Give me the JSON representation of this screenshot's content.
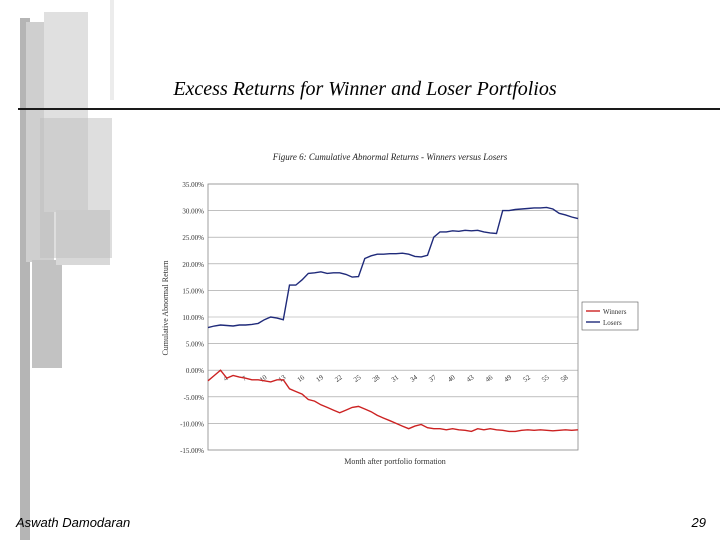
{
  "slide": {
    "title": "Excess Returns for Winner and Loser Portfolios",
    "author": "Aswath Damodaran",
    "page_number": "29"
  },
  "chart_data": {
    "type": "line",
    "title": "Figure 6: Cumulative Abnormal Returns - Winners versus Losers",
    "xlabel": "Month after portfolio formation",
    "ylabel": "Cumulative Abnormal Return",
    "ylim": [
      -15,
      35
    ],
    "yticks": [
      "35.00%",
      "30.00%",
      "25.00%",
      "20.00%",
      "15.00%",
      "10.00%",
      "5.00%",
      "0.00%",
      "-5.00%",
      "-10.00%",
      "-15.00%"
    ],
    "xticks": [
      "4",
      "7",
      "10",
      "13",
      "16",
      "19",
      "22",
      "25",
      "28",
      "31",
      "34",
      "37",
      "40",
      "43",
      "46",
      "49",
      "52",
      "55",
      "58"
    ],
    "xlim": [
      1,
      60
    ],
    "grid": true,
    "legend_position": "right",
    "series": [
      {
        "name": "Winners",
        "color": "#cc2222",
        "points": [
          [
            1,
            -2.0
          ],
          [
            2,
            -1.0
          ],
          [
            3,
            0.0
          ],
          [
            4,
            -1.5
          ],
          [
            5,
            -1.0
          ],
          [
            6,
            -1.3
          ],
          [
            7,
            -1.5
          ],
          [
            8,
            -1.8
          ],
          [
            9,
            -1.8
          ],
          [
            10,
            -2.0
          ],
          [
            11,
            -2.2
          ],
          [
            12,
            -1.8
          ],
          [
            13,
            -1.8
          ],
          [
            14,
            -3.5
          ],
          [
            15,
            -4.0
          ],
          [
            16,
            -4.5
          ],
          [
            17,
            -5.5
          ],
          [
            18,
            -5.8
          ],
          [
            19,
            -6.5
          ],
          [
            20,
            -7.0
          ],
          [
            21,
            -7.5
          ],
          [
            22,
            -8.0
          ],
          [
            23,
            -7.5
          ],
          [
            24,
            -7.0
          ],
          [
            25,
            -6.8
          ],
          [
            26,
            -7.3
          ],
          [
            27,
            -7.8
          ],
          [
            28,
            -8.5
          ],
          [
            29,
            -9.0
          ],
          [
            30,
            -9.5
          ],
          [
            31,
            -10.0
          ],
          [
            32,
            -10.5
          ],
          [
            33,
            -11.0
          ],
          [
            34,
            -10.5
          ],
          [
            35,
            -10.2
          ],
          [
            36,
            -10.8
          ],
          [
            37,
            -11.0
          ],
          [
            38,
            -11.0
          ],
          [
            39,
            -11.2
          ],
          [
            40,
            -11.0
          ],
          [
            41,
            -11.2
          ],
          [
            42,
            -11.3
          ],
          [
            43,
            -11.5
          ],
          [
            44,
            -11.0
          ],
          [
            45,
            -11.2
          ],
          [
            46,
            -11.0
          ],
          [
            47,
            -11.2
          ],
          [
            48,
            -11.3
          ],
          [
            49,
            -11.5
          ],
          [
            50,
            -11.5
          ],
          [
            51,
            -11.3
          ],
          [
            52,
            -11.2
          ],
          [
            53,
            -11.3
          ],
          [
            54,
            -11.2
          ],
          [
            55,
            -11.3
          ],
          [
            56,
            -11.4
          ],
          [
            57,
            -11.3
          ],
          [
            58,
            -11.2
          ],
          [
            59,
            -11.3
          ],
          [
            60,
            -11.2
          ]
        ]
      },
      {
        "name": "Losers",
        "color": "#1f2a7a",
        "points": [
          [
            1,
            8.0
          ],
          [
            2,
            8.3
          ],
          [
            3,
            8.5
          ],
          [
            4,
            8.4
          ],
          [
            5,
            8.3
          ],
          [
            6,
            8.5
          ],
          [
            7,
            8.5
          ],
          [
            8,
            8.6
          ],
          [
            9,
            8.8
          ],
          [
            10,
            9.5
          ],
          [
            11,
            10.0
          ],
          [
            12,
            9.8
          ],
          [
            13,
            9.5
          ],
          [
            14,
            16.0
          ],
          [
            15,
            16.0
          ],
          [
            16,
            17.0
          ],
          [
            17,
            18.2
          ],
          [
            18,
            18.3
          ],
          [
            19,
            18.5
          ],
          [
            20,
            18.2
          ],
          [
            21,
            18.3
          ],
          [
            22,
            18.3
          ],
          [
            23,
            18.0
          ],
          [
            24,
            17.5
          ],
          [
            25,
            17.6
          ],
          [
            26,
            21.0
          ],
          [
            27,
            21.5
          ],
          [
            28,
            21.8
          ],
          [
            29,
            21.8
          ],
          [
            30,
            21.9
          ],
          [
            31,
            21.9
          ],
          [
            32,
            22.0
          ],
          [
            33,
            21.8
          ],
          [
            34,
            21.4
          ],
          [
            35,
            21.3
          ],
          [
            36,
            21.6
          ],
          [
            37,
            25.0
          ],
          [
            38,
            26.0
          ],
          [
            39,
            26.0
          ],
          [
            40,
            26.2
          ],
          [
            41,
            26.1
          ],
          [
            42,
            26.3
          ],
          [
            43,
            26.2
          ],
          [
            44,
            26.3
          ],
          [
            45,
            26.0
          ],
          [
            46,
            25.8
          ],
          [
            47,
            25.7
          ],
          [
            48,
            30.0
          ],
          [
            49,
            30.0
          ],
          [
            50,
            30.2
          ],
          [
            51,
            30.3
          ],
          [
            52,
            30.4
          ],
          [
            53,
            30.5
          ],
          [
            54,
            30.5
          ],
          [
            55,
            30.6
          ],
          [
            56,
            30.3
          ],
          [
            57,
            29.5
          ],
          [
            58,
            29.2
          ],
          [
            59,
            28.8
          ],
          [
            60,
            28.5
          ]
        ]
      }
    ]
  }
}
